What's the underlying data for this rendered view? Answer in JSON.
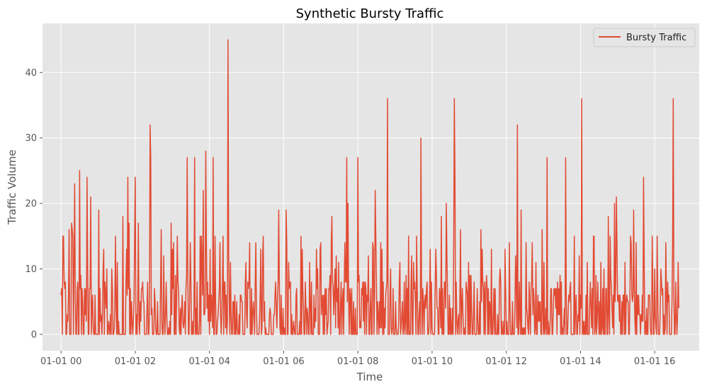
{
  "chart_data": {
    "type": "line",
    "title": "Synthetic Bursty Traffic",
    "xlabel": "Time",
    "ylabel": "Traffic Volume",
    "x_unit": "minutes",
    "x_start": "2023-01-01 00:00",
    "xlim_hours": [
      -0.5,
      17.2
    ],
    "ylim": [
      -2.5,
      47.5
    ],
    "x_ticks": [
      {
        "hour": 0,
        "label": "01-01 00"
      },
      {
        "hour": 2,
        "label": "01-01 02"
      },
      {
        "hour": 4,
        "label": "01-01 04"
      },
      {
        "hour": 6,
        "label": "01-01 06"
      },
      {
        "hour": 8,
        "label": "01-01 08"
      },
      {
        "hour": 10,
        "label": "01-01 10"
      },
      {
        "hour": 12,
        "label": "01-01 12"
      },
      {
        "hour": 14,
        "label": "01-01 14"
      },
      {
        "hour": 16,
        "label": "01-01 16"
      }
    ],
    "y_ticks": [
      0,
      10,
      20,
      30,
      40
    ],
    "grid": true,
    "legend_position": "top-right",
    "series": [
      {
        "name": "Bursty Traffic",
        "color": "#E24A33",
        "peaks": [
          {
            "minute": 3,
            "value": 15
          },
          {
            "minute": 30,
            "value": 25
          },
          {
            "minute": 42,
            "value": 24
          },
          {
            "minute": 48,
            "value": 21
          },
          {
            "minute": 108,
            "value": 24
          },
          {
            "minute": 120,
            "value": 24
          },
          {
            "minute": 144,
            "value": 32
          },
          {
            "minute": 145,
            "value": 27
          },
          {
            "minute": 204,
            "value": 27
          },
          {
            "minute": 216,
            "value": 27
          },
          {
            "minute": 234,
            "value": 28
          },
          {
            "minute": 246,
            "value": 27
          },
          {
            "minute": 270,
            "value": 45
          },
          {
            "minute": 462,
            "value": 27
          },
          {
            "minute": 480,
            "value": 27
          },
          {
            "minute": 528,
            "value": 36
          },
          {
            "minute": 582,
            "value": 30
          },
          {
            "minute": 636,
            "value": 36
          },
          {
            "minute": 637,
            "value": 24
          },
          {
            "minute": 738,
            "value": 32
          },
          {
            "minute": 786,
            "value": 27
          },
          {
            "minute": 816,
            "value": 27
          },
          {
            "minute": 842,
            "value": 36
          },
          {
            "minute": 942,
            "value": 24
          },
          {
            "minute": 990,
            "value": 36
          }
        ],
        "length_minutes": 1000
      }
    ]
  }
}
